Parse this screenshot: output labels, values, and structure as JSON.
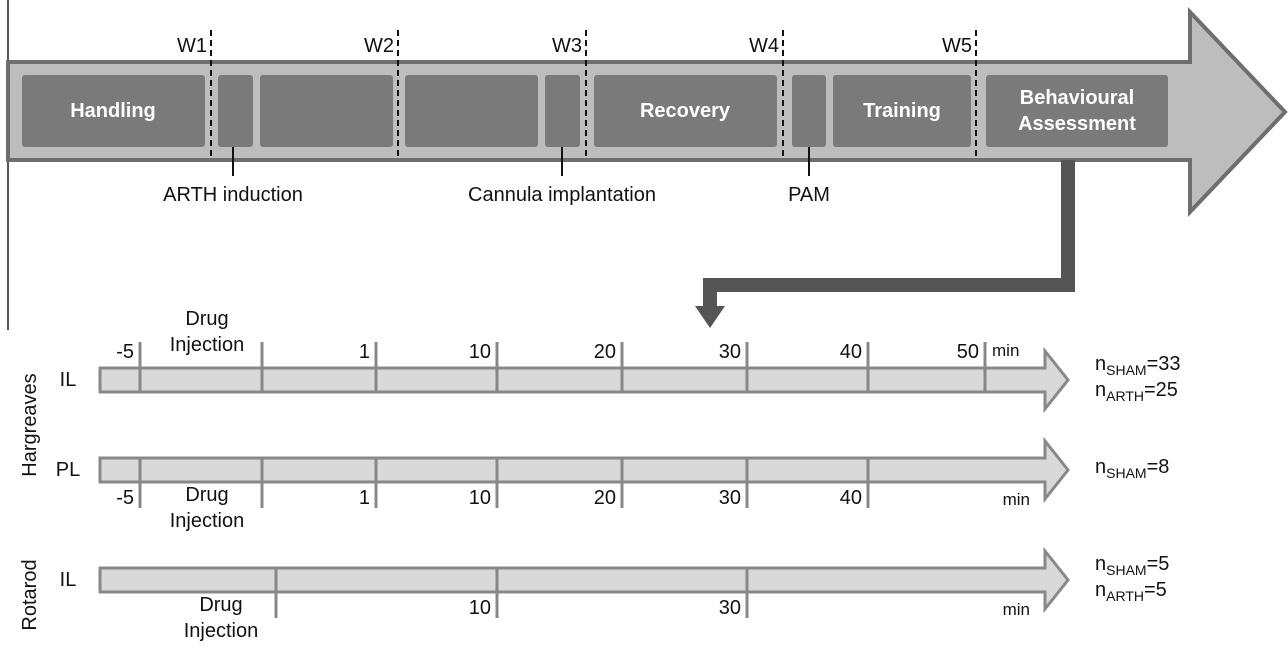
{
  "timeline": {
    "weeks": [
      "W1",
      "W2",
      "W3",
      "W4",
      "W5"
    ],
    "phases": [
      "Handling",
      "Recovery",
      "Training",
      "Behavioural Assessment"
    ],
    "events": [
      "ARTH induction",
      "Cannula implantation",
      "PAM"
    ]
  },
  "groups": [
    {
      "name": "Hargreaves",
      "rows": [
        {
          "label": "IL",
          "ticks": [
            -5,
            "Drug Injection",
            1,
            10,
            20,
            30,
            40,
            50
          ],
          "unit": "min",
          "n": [
            {
              "symbol": "n",
              "subscript": "SHAM",
              "rest": "=33"
            },
            {
              "symbol": "n",
              "subscript": "ARTH",
              "rest": "=25"
            }
          ]
        },
        {
          "label": "PL",
          "ticks": [
            -5,
            "Drug Injection",
            1,
            10,
            20,
            30,
            40
          ],
          "unit": "min",
          "n": [
            {
              "symbol": "n",
              "subscript": "SHAM",
              "rest": "=8"
            }
          ]
        }
      ]
    },
    {
      "name": "Rotarod",
      "rows": [
        {
          "label": "IL",
          "ticks": [
            "Drug Injection",
            10,
            30
          ],
          "unit": "min",
          "n": [
            {
              "symbol": "n",
              "subscript": "SHAM",
              "rest": "=5"
            },
            {
              "symbol": "n",
              "subscript": "ARTH",
              "rest": "=5"
            }
          ]
        }
      ]
    }
  ]
}
